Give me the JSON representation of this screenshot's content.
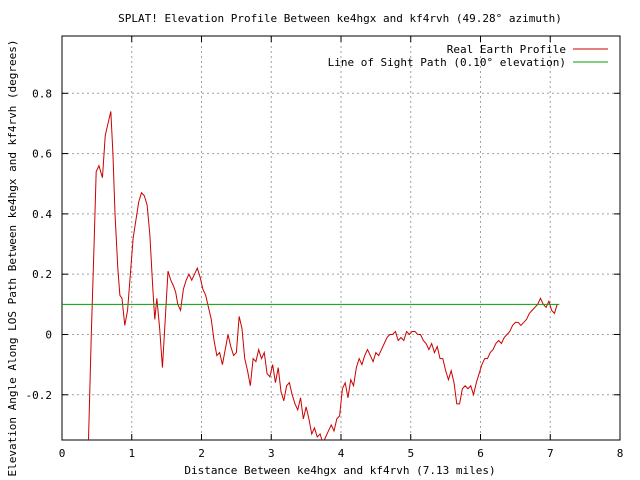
{
  "chart_data": {
    "type": "line",
    "title": "SPLAT! Elevation Profile Between ke4hgx and kf4rvh (49.28° azimuth)",
    "xlabel": "Distance Between ke4hgx and kf4rvh (7.13 miles)",
    "ylabel": "Elevation Angle Along LOS Path Between ke4hgx and kf4rvh (degrees)",
    "xlim": [
      0,
      8
    ],
    "ylim": [
      -0.35,
      0.99
    ],
    "xticks": [
      0,
      1,
      2,
      3,
      4,
      5,
      6,
      7,
      8
    ],
    "xtick_labels": [
      "0",
      "1",
      "2",
      "3",
      "4",
      "5",
      "6",
      "7",
      "8"
    ],
    "yticks": [
      -0.2,
      0,
      0.2,
      0.4,
      0.6,
      0.8
    ],
    "ytick_labels": [
      "-0.2",
      "0",
      "0.2",
      "0.4",
      "0.6",
      "0.8"
    ],
    "grid": true,
    "legend_position": "top-right",
    "series": [
      {
        "name": "Real Earth Profile",
        "color": "#cc0000",
        "points": [
          [
            0.38,
            -0.35
          ],
          [
            0.42,
            0.0
          ],
          [
            0.46,
            0.3
          ],
          [
            0.49,
            0.54
          ],
          [
            0.53,
            0.56
          ],
          [
            0.58,
            0.52
          ],
          [
            0.62,
            0.66
          ],
          [
            0.66,
            0.7
          ],
          [
            0.7,
            0.74
          ],
          [
            0.73,
            0.6
          ],
          [
            0.76,
            0.4
          ],
          [
            0.8,
            0.22
          ],
          [
            0.83,
            0.13
          ],
          [
            0.86,
            0.12
          ],
          [
            0.9,
            0.03
          ],
          [
            0.94,
            0.08
          ],
          [
            0.98,
            0.2
          ],
          [
            1.02,
            0.32
          ],
          [
            1.06,
            0.38
          ],
          [
            1.1,
            0.44
          ],
          [
            1.14,
            0.47
          ],
          [
            1.18,
            0.46
          ],
          [
            1.22,
            0.43
          ],
          [
            1.26,
            0.33
          ],
          [
            1.3,
            0.16
          ],
          [
            1.33,
            0.05
          ],
          [
            1.36,
            0.12
          ],
          [
            1.4,
            0.02
          ],
          [
            1.44,
            -0.11
          ],
          [
            1.48,
            0.05
          ],
          [
            1.52,
            0.21
          ],
          [
            1.56,
            0.18
          ],
          [
            1.6,
            0.16
          ],
          [
            1.63,
            0.14
          ],
          [
            1.66,
            0.1
          ],
          [
            1.7,
            0.08
          ],
          [
            1.74,
            0.15
          ],
          [
            1.78,
            0.18
          ],
          [
            1.82,
            0.2
          ],
          [
            1.86,
            0.18
          ],
          [
            1.9,
            0.2
          ],
          [
            1.94,
            0.22
          ],
          [
            1.98,
            0.19
          ],
          [
            2.02,
            0.15
          ],
          [
            2.06,
            0.13
          ],
          [
            2.1,
            0.09
          ],
          [
            2.14,
            0.05
          ],
          [
            2.18,
            -0.02
          ],
          [
            2.22,
            -0.07
          ],
          [
            2.26,
            -0.06
          ],
          [
            2.3,
            -0.1
          ],
          [
            2.34,
            -0.05
          ],
          [
            2.38,
            0.0
          ],
          [
            2.42,
            -0.04
          ],
          [
            2.46,
            -0.07
          ],
          [
            2.5,
            -0.06
          ],
          [
            2.54,
            0.06
          ],
          [
            2.58,
            0.02
          ],
          [
            2.62,
            -0.08
          ],
          [
            2.66,
            -0.12
          ],
          [
            2.7,
            -0.17
          ],
          [
            2.74,
            -0.08
          ],
          [
            2.78,
            -0.09
          ],
          [
            2.82,
            -0.05
          ],
          [
            2.86,
            -0.08
          ],
          [
            2.9,
            -0.06
          ],
          [
            2.94,
            -0.13
          ],
          [
            2.98,
            -0.14
          ],
          [
            3.02,
            -0.1
          ],
          [
            3.06,
            -0.16
          ],
          [
            3.1,
            -0.11
          ],
          [
            3.14,
            -0.19
          ],
          [
            3.18,
            -0.22
          ],
          [
            3.22,
            -0.17
          ],
          [
            3.26,
            -0.16
          ],
          [
            3.3,
            -0.2
          ],
          [
            3.34,
            -0.23
          ],
          [
            3.38,
            -0.25
          ],
          [
            3.42,
            -0.21
          ],
          [
            3.46,
            -0.28
          ],
          [
            3.5,
            -0.24
          ],
          [
            3.54,
            -0.28
          ],
          [
            3.58,
            -0.33
          ],
          [
            3.62,
            -0.31
          ],
          [
            3.66,
            -0.34
          ],
          [
            3.7,
            -0.33
          ],
          [
            3.74,
            -0.36
          ],
          [
            3.78,
            -0.34
          ],
          [
            3.82,
            -0.32
          ],
          [
            3.86,
            -0.3
          ],
          [
            3.9,
            -0.32
          ],
          [
            3.94,
            -0.28
          ],
          [
            3.98,
            -0.27
          ],
          [
            4.02,
            -0.18
          ],
          [
            4.06,
            -0.16
          ],
          [
            4.1,
            -0.21
          ],
          [
            4.14,
            -0.15
          ],
          [
            4.18,
            -0.17
          ],
          [
            4.22,
            -0.11
          ],
          [
            4.26,
            -0.08
          ],
          [
            4.3,
            -0.1
          ],
          [
            4.34,
            -0.07
          ],
          [
            4.38,
            -0.05
          ],
          [
            4.42,
            -0.07
          ],
          [
            4.46,
            -0.09
          ],
          [
            4.5,
            -0.06
          ],
          [
            4.54,
            -0.07
          ],
          [
            4.58,
            -0.05
          ],
          [
            4.62,
            -0.03
          ],
          [
            4.66,
            -0.01
          ],
          [
            4.7,
            0.0
          ],
          [
            4.74,
            0.0
          ],
          [
            4.78,
            0.01
          ],
          [
            4.82,
            -0.02
          ],
          [
            4.86,
            -0.01
          ],
          [
            4.9,
            -0.02
          ],
          [
            4.94,
            0.01
          ],
          [
            4.98,
            0.0
          ],
          [
            5.02,
            0.01
          ],
          [
            5.06,
            0.01
          ],
          [
            5.1,
            0.0
          ],
          [
            5.14,
            0.0
          ],
          [
            5.18,
            -0.02
          ],
          [
            5.22,
            -0.03
          ],
          [
            5.26,
            -0.05
          ],
          [
            5.3,
            -0.03
          ],
          [
            5.34,
            -0.06
          ],
          [
            5.38,
            -0.04
          ],
          [
            5.42,
            -0.08
          ],
          [
            5.46,
            -0.08
          ],
          [
            5.5,
            -0.12
          ],
          [
            5.54,
            -0.15
          ],
          [
            5.58,
            -0.12
          ],
          [
            5.62,
            -0.16
          ],
          [
            5.66,
            -0.23
          ],
          [
            5.7,
            -0.23
          ],
          [
            5.74,
            -0.18
          ],
          [
            5.78,
            -0.17
          ],
          [
            5.82,
            -0.18
          ],
          [
            5.86,
            -0.17
          ],
          [
            5.9,
            -0.2
          ],
          [
            5.94,
            -0.16
          ],
          [
            5.98,
            -0.13
          ],
          [
            6.02,
            -0.1
          ],
          [
            6.06,
            -0.08
          ],
          [
            6.1,
            -0.08
          ],
          [
            6.14,
            -0.06
          ],
          [
            6.18,
            -0.05
          ],
          [
            6.22,
            -0.03
          ],
          [
            6.26,
            -0.02
          ],
          [
            6.3,
            -0.03
          ],
          [
            6.34,
            -0.01
          ],
          [
            6.38,
            0.0
          ],
          [
            6.42,
            0.01
          ],
          [
            6.46,
            0.03
          ],
          [
            6.5,
            0.04
          ],
          [
            6.54,
            0.04
          ],
          [
            6.58,
            0.03
          ],
          [
            6.62,
            0.04
          ],
          [
            6.66,
            0.05
          ],
          [
            6.7,
            0.07
          ],
          [
            6.74,
            0.08
          ],
          [
            6.78,
            0.09
          ],
          [
            6.82,
            0.1
          ],
          [
            6.86,
            0.12
          ],
          [
            6.9,
            0.1
          ],
          [
            6.94,
            0.09
          ],
          [
            6.98,
            0.11
          ],
          [
            7.02,
            0.08
          ],
          [
            7.06,
            0.07
          ],
          [
            7.1,
            0.1
          ]
        ]
      },
      {
        "name": "Line of Sight Path (0.10° elevation)",
        "color": "#00a000",
        "points": [
          [
            0.0,
            0.1
          ],
          [
            7.13,
            0.1
          ]
        ]
      }
    ]
  }
}
